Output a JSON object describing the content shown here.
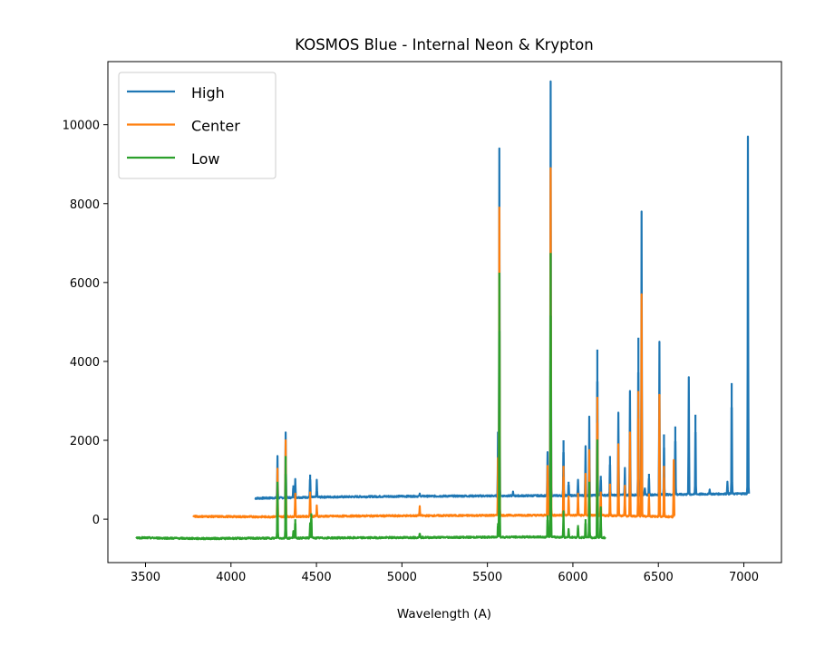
{
  "chart_data": {
    "type": "line",
    "title": "KOSMOS Blue - Internal Neon & Krypton",
    "xlabel": "Wavelength (A)",
    "ylabel": "",
    "xlim": [
      3280,
      7220
    ],
    "ylim": [
      -1100,
      11600
    ],
    "xticks": [
      3500,
      4000,
      4500,
      5000,
      5500,
      6000,
      6500,
      7000
    ],
    "yticks": [
      0,
      2000,
      4000,
      6000,
      8000,
      10000
    ],
    "grid": false,
    "legend_position": "top-left",
    "series": [
      {
        "name": "High",
        "color": "#1f77b4",
        "x_range": [
          4140,
          7030
        ],
        "baseline": [
          [
            4140,
            530
          ],
          [
            4500,
            560
          ],
          [
            5000,
            580
          ],
          [
            5500,
            590
          ],
          [
            6000,
            600
          ],
          [
            6500,
            620
          ],
          [
            7030,
            650
          ]
        ],
        "peaks": [
          {
            "x": 4272,
            "y": 1600
          },
          {
            "x": 4320,
            "y": 2200
          },
          {
            "x": 4365,
            "y": 860
          },
          {
            "x": 4376,
            "y": 1020
          },
          {
            "x": 4463,
            "y": 1130
          },
          {
            "x": 4502,
            "y": 1000
          },
          {
            "x": 5104,
            "y": 650
          },
          {
            "x": 5562,
            "y": 2200
          },
          {
            "x": 5570,
            "y": 9400
          },
          {
            "x": 5650,
            "y": 700
          },
          {
            "x": 5852,
            "y": 1700
          },
          {
            "x": 5870,
            "y": 11100
          },
          {
            "x": 5945,
            "y": 2000
          },
          {
            "x": 5975,
            "y": 950
          },
          {
            "x": 6030,
            "y": 1000
          },
          {
            "x": 6074,
            "y": 1850
          },
          {
            "x": 6096,
            "y": 2600
          },
          {
            "x": 6143,
            "y": 4300
          },
          {
            "x": 6163,
            "y": 1100
          },
          {
            "x": 6217,
            "y": 1600
          },
          {
            "x": 6266,
            "y": 2700
          },
          {
            "x": 6304,
            "y": 1300
          },
          {
            "x": 6334,
            "y": 3250
          },
          {
            "x": 6383,
            "y": 4600
          },
          {
            "x": 6402,
            "y": 7800
          },
          {
            "x": 6421,
            "y": 800
          },
          {
            "x": 6445,
            "y": 1150
          },
          {
            "x": 6506,
            "y": 4500
          },
          {
            "x": 6533,
            "y": 2150
          },
          {
            "x": 6599,
            "y": 2350
          },
          {
            "x": 6678,
            "y": 3600
          },
          {
            "x": 6717,
            "y": 2650
          },
          {
            "x": 6800,
            "y": 750
          },
          {
            "x": 6904,
            "y": 950
          },
          {
            "x": 6929,
            "y": 3450
          },
          {
            "x": 7024,
            "y": 9700
          }
        ]
      },
      {
        "name": "Center",
        "color": "#ff7f0e",
        "x_range": [
          3780,
          6595
        ],
        "baseline": [
          [
            3780,
            70
          ],
          [
            4200,
            60
          ],
          [
            4700,
            80
          ],
          [
            5200,
            90
          ],
          [
            5700,
            100
          ],
          [
            6100,
            100
          ],
          [
            6595,
            60
          ]
        ],
        "peaks": [
          {
            "x": 4272,
            "y": 1280
          },
          {
            "x": 4320,
            "y": 2000
          },
          {
            "x": 4376,
            "y": 650
          },
          {
            "x": 4463,
            "y": 700
          },
          {
            "x": 4502,
            "y": 350
          },
          {
            "x": 5104,
            "y": 330
          },
          {
            "x": 5562,
            "y": 1550
          },
          {
            "x": 5570,
            "y": 7900
          },
          {
            "x": 5852,
            "y": 1350
          },
          {
            "x": 5870,
            "y": 8900
          },
          {
            "x": 5945,
            "y": 1350
          },
          {
            "x": 5975,
            "y": 600
          },
          {
            "x": 6030,
            "y": 650
          },
          {
            "x": 6074,
            "y": 1150
          },
          {
            "x": 6096,
            "y": 1750
          },
          {
            "x": 6143,
            "y": 3100
          },
          {
            "x": 6163,
            "y": 700
          },
          {
            "x": 6217,
            "y": 900
          },
          {
            "x": 6266,
            "y": 1900
          },
          {
            "x": 6304,
            "y": 850
          },
          {
            "x": 6334,
            "y": 2200
          },
          {
            "x": 6383,
            "y": 3250
          },
          {
            "x": 6402,
            "y": 5700
          },
          {
            "x": 6445,
            "y": 650
          },
          {
            "x": 6506,
            "y": 3150
          },
          {
            "x": 6533,
            "y": 1350
          },
          {
            "x": 6590,
            "y": 1500
          }
        ]
      },
      {
        "name": "Low",
        "color": "#2ca02c",
        "x_range": [
          3445,
          6190
        ],
        "baseline": [
          [
            3445,
            -470
          ],
          [
            3800,
            -490
          ],
          [
            4300,
            -480
          ],
          [
            4800,
            -470
          ],
          [
            5300,
            -460
          ],
          [
            5800,
            -450
          ],
          [
            6190,
            -470
          ]
        ],
        "peaks": [
          {
            "x": 4272,
            "y": 950
          },
          {
            "x": 4320,
            "y": 1600
          },
          {
            "x": 4365,
            "y": -300
          },
          {
            "x": 4376,
            "y": 0
          },
          {
            "x": 4463,
            "y": -100
          },
          {
            "x": 4470,
            "y": 150
          },
          {
            "x": 5104,
            "y": -350
          },
          {
            "x": 5562,
            "y": -100
          },
          {
            "x": 5570,
            "y": 6250
          },
          {
            "x": 5852,
            "y": 100
          },
          {
            "x": 5870,
            "y": 6750
          },
          {
            "x": 5945,
            "y": 200
          },
          {
            "x": 5975,
            "y": -250
          },
          {
            "x": 6030,
            "y": -150
          },
          {
            "x": 6074,
            "y": 0
          },
          {
            "x": 6096,
            "y": 950
          },
          {
            "x": 6143,
            "y": 2000
          },
          {
            "x": 6163,
            "y": 300
          }
        ]
      }
    ]
  }
}
